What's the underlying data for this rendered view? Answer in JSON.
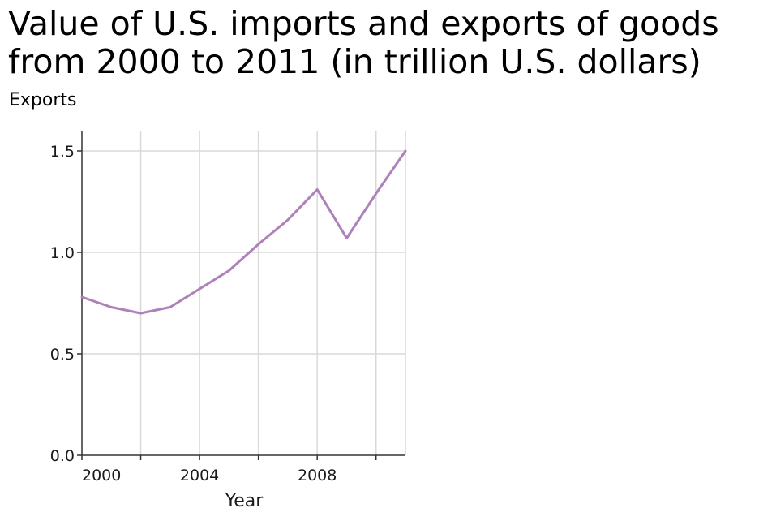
{
  "chart_data": {
    "type": "line",
    "title": "Value of U.S. imports and exports of goods\nfrom 2000 to 2011 (in trillion U.S. dollars)",
    "ylabel": "Exports",
    "xlabel": "Year",
    "xlim": [
      2000,
      2011
    ],
    "ylim": [
      0,
      1.6
    ],
    "x_ticks": [
      2000,
      2002,
      2004,
      2006,
      2008,
      2010
    ],
    "x_tick_labels": [
      "2000",
      "",
      "2004",
      "",
      "2008",
      ""
    ],
    "y_ticks": [
      0,
      0.5,
      1.0,
      1.5
    ],
    "y_tick_labels": [
      "0.0",
      "0.5",
      "1.0",
      "1.5"
    ],
    "grid": true,
    "series": [
      {
        "color": "#b07fbd",
        "x": [
          2000,
          2001,
          2002,
          2003,
          2004,
          2005,
          2006,
          2007,
          2008,
          2009,
          2010,
          2011
        ],
        "y": [
          0.78,
          0.73,
          0.7,
          0.73,
          0.82,
          0.91,
          1.04,
          1.16,
          1.31,
          1.07,
          1.29,
          1.5
        ]
      }
    ]
  }
}
